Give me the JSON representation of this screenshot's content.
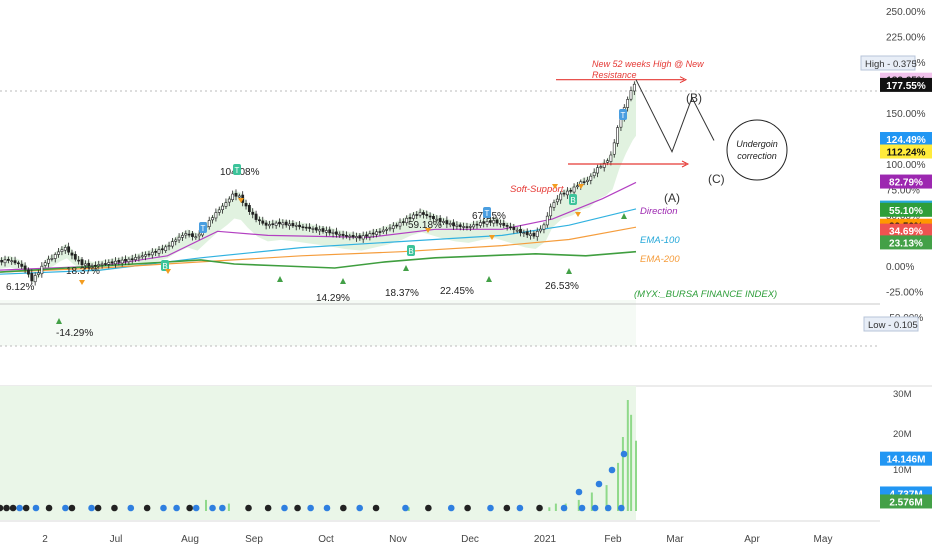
{
  "chart_data": {
    "type": "candlestick",
    "y_axis_labels": [
      "250.00%",
      "225.00%",
      "200.00%",
      "175.00%",
      "150.00%",
      "125.00%",
      "100.00%",
      "75.00%",
      "50.00%",
      "25.00%",
      "0.00%",
      "-25.00%",
      "-50.00%"
    ],
    "y_axis_values": [
      250,
      225,
      200,
      175,
      150,
      125,
      100,
      75,
      50,
      25,
      0,
      -25,
      -50
    ],
    "x_labels": [
      "2",
      "Jul",
      "Aug",
      "Sep",
      "Oct",
      "Nov",
      "Dec",
      "2021",
      "Feb",
      "Mar",
      "Apr",
      "May"
    ],
    "volume_axis_labels": [
      "30M",
      "20M",
      "10M"
    ],
    "price_path": [
      [
        0,
        4
      ],
      [
        6,
        6
      ],
      [
        12,
        2
      ],
      [
        16,
        -3
      ],
      [
        20,
        -14
      ],
      [
        24,
        -6
      ],
      [
        28,
        4
      ],
      [
        32,
        8
      ],
      [
        36,
        14
      ],
      [
        40,
        18
      ],
      [
        44,
        10
      ],
      [
        50,
        2
      ],
      [
        56,
        0
      ],
      [
        62,
        2
      ],
      [
        70,
        4
      ],
      [
        78,
        6
      ],
      [
        86,
        10
      ],
      [
        94,
        14
      ],
      [
        100,
        18
      ],
      [
        106,
        26
      ],
      [
        112,
        32
      ],
      [
        118,
        28
      ],
      [
        124,
        40
      ],
      [
        130,
        52
      ],
      [
        136,
        62
      ],
      [
        140,
        70
      ],
      [
        144,
        68
      ],
      [
        148,
        58
      ],
      [
        154,
        46
      ],
      [
        160,
        40
      ],
      [
        168,
        42
      ],
      [
        176,
        40
      ],
      [
        186,
        37
      ],
      [
        196,
        34
      ],
      [
        206,
        30
      ],
      [
        216,
        28
      ],
      [
        224,
        32
      ],
      [
        232,
        36
      ],
      [
        240,
        42
      ],
      [
        246,
        48
      ],
      [
        252,
        52
      ],
      [
        258,
        48
      ],
      [
        264,
        44
      ],
      [
        272,
        40
      ],
      [
        280,
        38
      ],
      [
        288,
        42
      ],
      [
        296,
        44
      ],
      [
        302,
        40
      ],
      [
        308,
        36
      ],
      [
        314,
        32
      ],
      [
        320,
        30
      ],
      [
        326,
        40
      ],
      [
        330,
        58
      ],
      [
        336,
        70
      ],
      [
        342,
        74
      ],
      [
        348,
        82
      ],
      [
        352,
        84
      ],
      [
        358,
        96
      ],
      [
        362,
        100
      ],
      [
        366,
        108
      ],
      [
        370,
        135
      ],
      [
        374,
        155
      ],
      [
        378,
        172
      ],
      [
        380,
        178
      ]
    ],
    "price_pct_start": 4,
    "series": [
      {
        "name": "EMA-100",
        "color": "#31b2e0",
        "points": [
          [
            0,
            -8
          ],
          [
            60,
            -4
          ],
          [
            120,
            8
          ],
          [
            180,
            18
          ],
          [
            240,
            24
          ],
          [
            300,
            30
          ],
          [
            340,
            40
          ],
          [
            380,
            56
          ]
        ]
      },
      {
        "name": "EMA-200",
        "color": "#f59d3d",
        "points": [
          [
            0,
            -6
          ],
          [
            60,
            -2
          ],
          [
            120,
            4
          ],
          [
            180,
            10
          ],
          [
            240,
            14
          ],
          [
            300,
            20
          ],
          [
            340,
            26
          ],
          [
            380,
            38
          ]
        ]
      },
      {
        "name": "Direction",
        "color": "#b340c2",
        "points": [
          [
            0,
            -4
          ],
          [
            60,
            0
          ],
          [
            100,
            10
          ],
          [
            130,
            34
          ],
          [
            160,
            30
          ],
          [
            220,
            28
          ],
          [
            260,
            36
          ],
          [
            300,
            36
          ],
          [
            330,
            46
          ],
          [
            360,
            66
          ],
          [
            380,
            82
          ]
        ]
      },
      {
        "name": "(MYX:_BURSA FINANCE INDEX)",
        "color": "#3f9e3f",
        "points": [
          [
            0,
            -6
          ],
          [
            40,
            -2
          ],
          [
            80,
            2
          ],
          [
            120,
            6
          ],
          [
            140,
            2
          ],
          [
            170,
            0
          ],
          [
            200,
            -2
          ],
          [
            230,
            4
          ],
          [
            260,
            8
          ],
          [
            290,
            10
          ],
          [
            320,
            12
          ],
          [
            350,
            10
          ],
          [
            380,
            14
          ]
        ]
      }
    ],
    "right_badges": [
      {
        "text": "182.65%",
        "bg": "#f1c2ec",
        "fg": "#222222",
        "value": 182.65
      },
      {
        "text": "177.55%",
        "bg": "#111111",
        "fg": "#ffffff",
        "value": 177.55
      },
      {
        "text": "124.49%",
        "bg": "#2196f3",
        "fg": "#ffffff",
        "value": 124.49
      },
      {
        "text": "112.24%",
        "bg": "#ffeb3b",
        "fg": "#111111",
        "value": 112.24
      },
      {
        "text": "82.79%",
        "bg": "#9c27b0",
        "fg": "#ffffff",
        "value": 82.79
      },
      {
        "text": "57.25%",
        "bg": "#26a8d9",
        "fg": "#ffffff",
        "value": 57.25
      },
      {
        "text": "55.10%",
        "bg": "#2e9e3a",
        "fg": "#ffffff",
        "value": 55.1
      },
      {
        "text": "39.50%",
        "bg": "#ff9800",
        "fg": "#111111",
        "value": 39.5
      },
      {
        "text": "34.69%",
        "bg": "#ef5350",
        "fg": "#ffffff",
        "value": 34.69
      },
      {
        "text": "23.13%",
        "bg": "#43a047",
        "fg": "#ffffff",
        "value": 23.13
      }
    ],
    "high_label": "High",
    "high_value": "0.375",
    "low_label": "Low",
    "low_value": "0.105",
    "volume_badges": [
      {
        "text": "14.146M",
        "bg": "#2196f3",
        "fg": "#ffffff",
        "value": 14.146
      },
      {
        "text": "4.737M",
        "bg": "#2196f3",
        "fg": "#ffffff",
        "value": 4.737
      },
      {
        "text": "2.576M",
        "bg": "#43a047",
        "fg": "#ffffff",
        "value": 2.576
      }
    ],
    "pct_labels": [
      {
        "text": "6.12%",
        "value": 6.12
      },
      {
        "text": "18.37%",
        "value": 18.37
      },
      {
        "text": "-14.29%",
        "value": -14.29
      },
      {
        "text": "104.08%",
        "value": 104.08
      },
      {
        "text": "14.29%",
        "value": 14.29
      },
      {
        "text": "59.18%",
        "value": 59.18
      },
      {
        "text": "18.37%",
        "value": 18.37
      },
      {
        "text": "67.35%",
        "value": 67.35
      },
      {
        "text": "22.45%",
        "value": 22.45
      },
      {
        "text": "26.53%",
        "value": 26.53
      }
    ],
    "annotations": {
      "new_high": "New 52 weeks High @ New Resistance",
      "soft_support": "Soft-Support",
      "direction": "Direction",
      "ema100": "EMA-100",
      "ema200": "EMA-200",
      "index": "(MYX:_BURSA FINANCE INDEX)",
      "wave_a": "(A)",
      "wave_b": "(B)",
      "wave_c": "(C)",
      "correction_line1": "Undergoin",
      "correction_line2": "correction"
    },
    "volume_bars": [
      [
        378,
        13
      ],
      [
        381,
        20
      ],
      [
        384,
        30
      ],
      [
        386,
        26
      ],
      [
        389,
        19
      ],
      [
        371,
        7
      ],
      [
        362,
        5
      ],
      [
        354,
        3
      ],
      [
        346,
        2
      ],
      [
        340,
        2
      ],
      [
        336,
        1
      ],
      [
        100,
        1
      ],
      [
        126,
        3
      ],
      [
        130,
        1
      ],
      [
        140,
        2
      ],
      [
        200,
        1
      ],
      [
        250,
        1
      ],
      [
        300,
        1
      ]
    ],
    "volume_dots_blue": [
      12,
      22,
      40,
      56,
      80,
      100,
      108,
      120,
      130,
      136,
      174,
      190,
      200,
      220,
      248,
      276,
      300,
      318,
      345,
      356,
      364,
      372,
      380
    ],
    "volume_dots_black": [
      0,
      4,
      8,
      16,
      30,
      44,
      60,
      70,
      90,
      116,
      152,
      164,
      182,
      210,
      230,
      262,
      286,
      310,
      330
    ]
  }
}
